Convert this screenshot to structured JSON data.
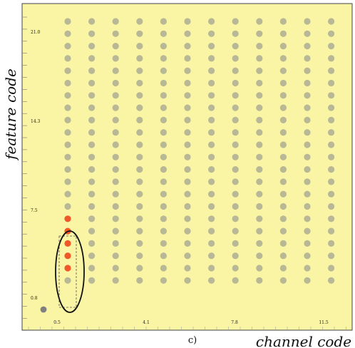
{
  "chart_data": {
    "type": "scatter",
    "title": "",
    "panel_label": "c)",
    "xlabel": "channel code",
    "ylabel": "feature code",
    "x_tick_labels": [
      "0.5",
      "4.1",
      "7.8",
      "11.5"
    ],
    "y_tick_labels": [
      "0.8",
      "7.5",
      "14.3",
      "21.0"
    ],
    "grid": false,
    "grid_points": {
      "columns": 12,
      "rows": 22,
      "color": "#b8b896"
    },
    "highlighted_points": {
      "column": 1,
      "rows": [
        2,
        3,
        4,
        5,
        6
      ],
      "color": "#f2572a"
    },
    "outlier_point": {
      "color": "#808080"
    },
    "colors": {
      "background": "#f9f5a4",
      "frame": "#444444",
      "ellipse": "#111111"
    }
  }
}
